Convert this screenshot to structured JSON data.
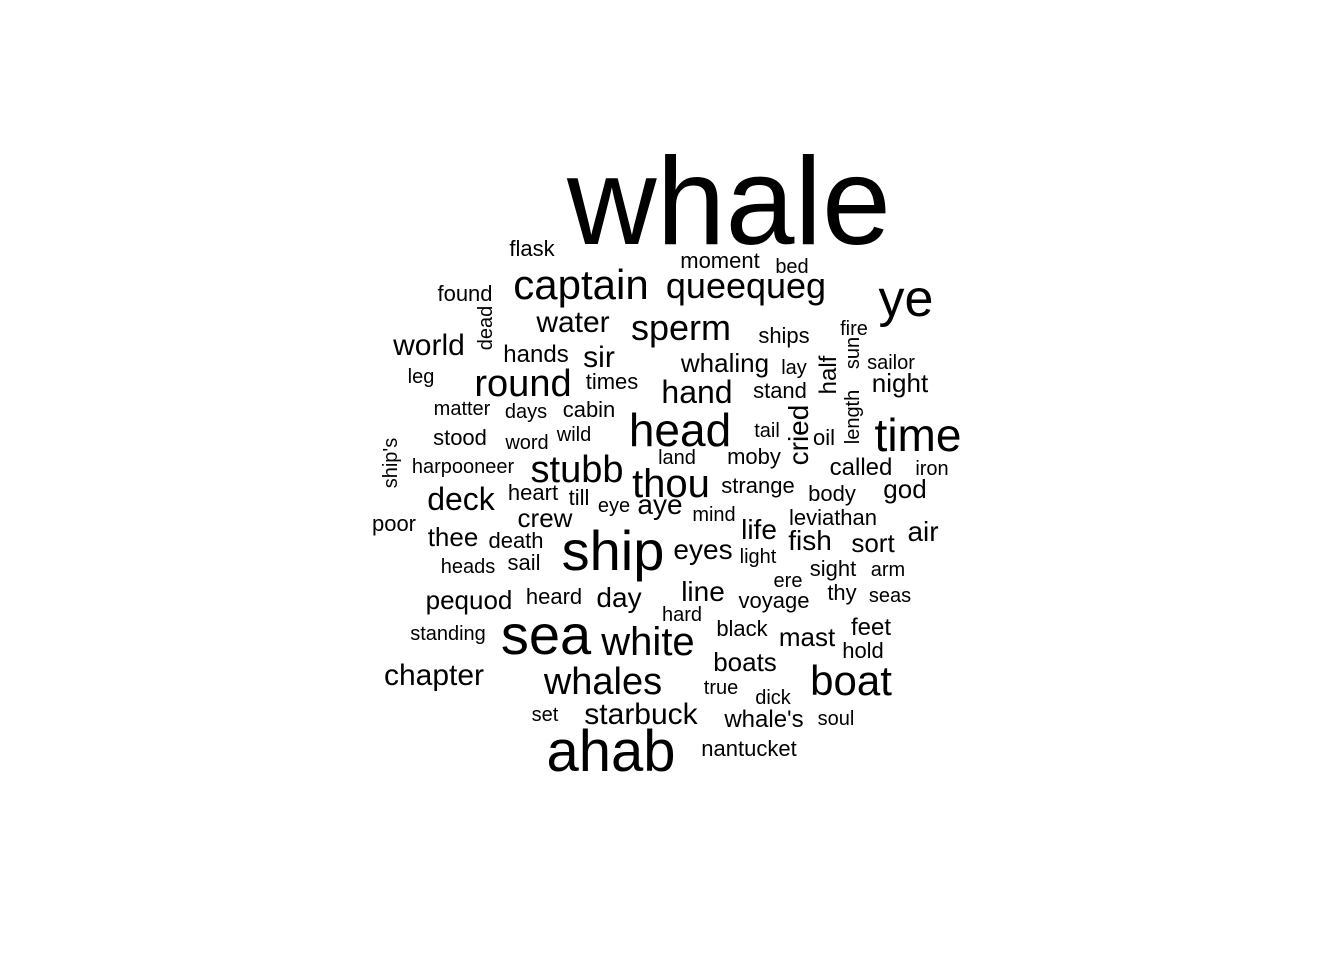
{
  "chart_data": {
    "type": "wordcloud",
    "words": [
      {
        "text": "whale",
        "size": 10
      },
      {
        "text": "ye",
        "size": 6
      },
      {
        "text": "ahab",
        "size": 7
      },
      {
        "text": "ship",
        "size": 7
      },
      {
        "text": "sea",
        "size": 7
      },
      {
        "text": "captain",
        "size": 5
      },
      {
        "text": "queequeg",
        "size": 4
      },
      {
        "text": "head",
        "size": 5
      },
      {
        "text": "time",
        "size": 5
      },
      {
        "text": "boat",
        "size": 5
      },
      {
        "text": "whales",
        "size": 4
      },
      {
        "text": "white",
        "size": 4
      },
      {
        "text": "thou",
        "size": 4
      },
      {
        "text": "stubb",
        "size": 4
      },
      {
        "text": "round",
        "size": 4
      },
      {
        "text": "sperm",
        "size": 4
      },
      {
        "text": "water",
        "size": 3
      },
      {
        "text": "hand",
        "size": 3
      },
      {
        "text": "starbuck",
        "size": 3
      },
      {
        "text": "deck",
        "size": 3
      },
      {
        "text": "chapter",
        "size": 3
      },
      {
        "text": "world",
        "size": 3
      },
      {
        "text": "sir",
        "size": 3
      },
      {
        "text": "whaling",
        "size": 2
      },
      {
        "text": "night",
        "size": 2
      },
      {
        "text": "sort",
        "size": 2
      },
      {
        "text": "air",
        "size": 2
      },
      {
        "text": "fish",
        "size": 2
      },
      {
        "text": "eyes",
        "size": 2
      },
      {
        "text": "life",
        "size": 2
      },
      {
        "text": "line",
        "size": 2
      },
      {
        "text": "day",
        "size": 2
      },
      {
        "text": "aye",
        "size": 2
      },
      {
        "text": "crew",
        "size": 2
      },
      {
        "text": "mast",
        "size": 2
      },
      {
        "text": "boats",
        "size": 2
      },
      {
        "text": "god",
        "size": 2
      },
      {
        "text": "pequod",
        "size": 2
      },
      {
        "text": "cried",
        "size": 2
      },
      {
        "text": "half",
        "size": 2
      },
      {
        "text": "thee",
        "size": 2
      },
      {
        "text": "feet",
        "size": 2
      },
      {
        "text": "called",
        "size": 2
      },
      {
        "text": "found",
        "size": 1
      },
      {
        "text": "flask",
        "size": 1
      },
      {
        "text": "moment",
        "size": 1
      },
      {
        "text": "bed",
        "size": 1
      },
      {
        "text": "dead",
        "size": 1
      },
      {
        "text": "hands",
        "size": 1
      },
      {
        "text": "ships",
        "size": 1
      },
      {
        "text": "fire",
        "size": 1
      },
      {
        "text": "sun",
        "size": 1
      },
      {
        "text": "sailor",
        "size": 1
      },
      {
        "text": "lay",
        "size": 1
      },
      {
        "text": "leg",
        "size": 1
      },
      {
        "text": "times",
        "size": 1
      },
      {
        "text": "stand",
        "size": 1
      },
      {
        "text": "length",
        "size": 1
      },
      {
        "text": "matter",
        "size": 1
      },
      {
        "text": "days",
        "size": 1
      },
      {
        "text": "cabin",
        "size": 1
      },
      {
        "text": "tail",
        "size": 1
      },
      {
        "text": "oil",
        "size": 1
      },
      {
        "text": "stood",
        "size": 1
      },
      {
        "text": "word",
        "size": 1
      },
      {
        "text": "wild",
        "size": 1
      },
      {
        "text": "ship's",
        "size": 1
      },
      {
        "text": "land",
        "size": 1
      },
      {
        "text": "moby",
        "size": 1
      },
      {
        "text": "harpooneer",
        "size": 1
      },
      {
        "text": "iron",
        "size": 1
      },
      {
        "text": "heart",
        "size": 1
      },
      {
        "text": "till",
        "size": 1
      },
      {
        "text": "eye",
        "size": 1
      },
      {
        "text": "strange",
        "size": 1
      },
      {
        "text": "body",
        "size": 1
      },
      {
        "text": "mind",
        "size": 1
      },
      {
        "text": "leviathan",
        "size": 1
      },
      {
        "text": "poor",
        "size": 1
      },
      {
        "text": "death",
        "size": 1
      },
      {
        "text": "light",
        "size": 1
      },
      {
        "text": "heads",
        "size": 1
      },
      {
        "text": "sail",
        "size": 1
      },
      {
        "text": "ere",
        "size": 1
      },
      {
        "text": "sight",
        "size": 1
      },
      {
        "text": "arm",
        "size": 1
      },
      {
        "text": "heard",
        "size": 1
      },
      {
        "text": "thy",
        "size": 1
      },
      {
        "text": "voyage",
        "size": 1
      },
      {
        "text": "seas",
        "size": 1
      },
      {
        "text": "hard",
        "size": 1
      },
      {
        "text": "standing",
        "size": 1
      },
      {
        "text": "black",
        "size": 1
      },
      {
        "text": "hold",
        "size": 1
      },
      {
        "text": "true",
        "size": 1
      },
      {
        "text": "dick",
        "size": 1
      },
      {
        "text": "set",
        "size": 1
      },
      {
        "text": "whale's",
        "size": 1
      },
      {
        "text": "soul",
        "size": 1
      },
      {
        "text": "nantucket",
        "size": 1
      }
    ]
  }
}
